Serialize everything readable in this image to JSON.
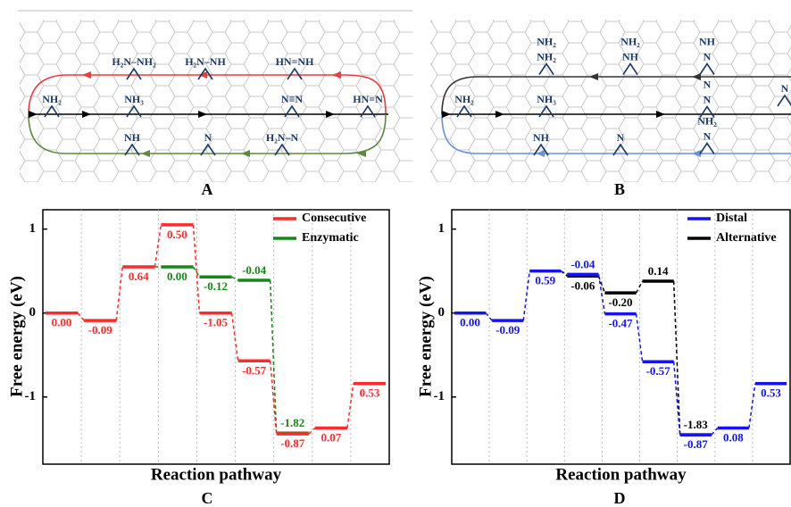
{
  "diagrams": [
    {
      "panel_label": "A",
      "species": [
        {
          "lines": [
            "H₂N–NH₂"
          ]
        },
        {
          "lines": [
            "H₂N–NH"
          ]
        },
        {
          "lines": [
            "HN=NH"
          ]
        },
        {
          "lines": [
            "NH₂"
          ]
        },
        {
          "lines": [
            "NH₃"
          ]
        },
        {
          "lines": [
            "N≡N"
          ]
        },
        {
          "lines": [
            "HN=N"
          ]
        },
        {
          "lines": [
            "NH"
          ]
        },
        {
          "lines": [
            "N"
          ]
        },
        {
          "lines": [
            "H₂N–N"
          ]
        }
      ]
    },
    {
      "panel_label": "B",
      "species": [
        {
          "lines": [
            "NH₂",
            "NH₂"
          ]
        },
        {
          "lines": [
            "NH₂",
            "NH"
          ]
        },
        {
          "lines": [
            "NH",
            "N"
          ]
        },
        {
          "lines": [
            "NH₂"
          ]
        },
        {
          "lines": [
            "NH₃"
          ]
        },
        {
          "lines": [
            "N",
            "N"
          ]
        },
        {
          "lines": [
            "N"
          ]
        },
        {
          "lines": [
            "NH"
          ]
        },
        {
          "lines": [
            "N"
          ]
        },
        {
          "lines": [
            "NH₂",
            "N"
          ]
        }
      ]
    }
  ],
  "chart_data": [
    {
      "type": "energy-step",
      "panel_label": "C",
      "xlabel": "Reaction pathway",
      "ylabel": "Free energy (eV)",
      "ylim": [
        -1.8,
        1.23
      ],
      "yticks": [
        -1,
        0,
        1
      ],
      "grid": true,
      "legend": "upper right",
      "categories": [
        null,
        null,
        null,
        null,
        null,
        null,
        null,
        null,
        null
      ],
      "series": [
        {
          "name": "Consecutive",
          "color": "#ff2a2a",
          "values": [
            0,
            -0.09,
            0.64,
            0.5,
            -1.05,
            -0.57,
            -0.87,
            0.07,
            0.53
          ],
          "value_labels": [
            "0.00",
            "-0.09",
            "0.64",
            "0.50",
            "-1.05",
            "-0.57",
            "-0.87",
            "0.07",
            "0.53"
          ]
        },
        {
          "name": "Enzymatic",
          "color": "#138a13",
          "values": [
            null,
            null,
            null,
            0,
            -0.12,
            -0.04,
            -1.82,
            null,
            null
          ],
          "value_labels": [
            null,
            null,
            null,
            "0.00",
            "-0.12",
            "-0.04",
            "-1.82",
            null,
            null
          ]
        }
      ]
    },
    {
      "type": "energy-step",
      "panel_label": "D",
      "xlabel": "Reaction pathway",
      "ylabel": "Free energy (eV)",
      "ylim": [
        -1.8,
        1.23
      ],
      "yticks": [
        -1,
        0,
        1
      ],
      "grid": true,
      "legend": "upper right",
      "categories": [
        null,
        null,
        null,
        null,
        null,
        null,
        null,
        null,
        null
      ],
      "series": [
        {
          "name": "Distal",
          "color": "#1414f0",
          "values": [
            0,
            -0.09,
            0.59,
            -0.04,
            -0.47,
            -0.57,
            -0.87,
            0.08,
            0.53
          ],
          "value_labels": [
            "0.00",
            "-0.09",
            "0.59",
            "-0.04",
            "-0.47",
            "-0.57",
            "-0.87",
            "0.08",
            "0.53"
          ]
        },
        {
          "name": "Alternative",
          "color": "#000000",
          "values": [
            null,
            null,
            null,
            -0.06,
            -0.2,
            0.14,
            -1.83,
            null,
            null
          ],
          "value_labels": [
            null,
            null,
            null,
            "-0.06",
            "-0.20",
            "0.14",
            "-1.83",
            null,
            null
          ]
        }
      ]
    }
  ]
}
